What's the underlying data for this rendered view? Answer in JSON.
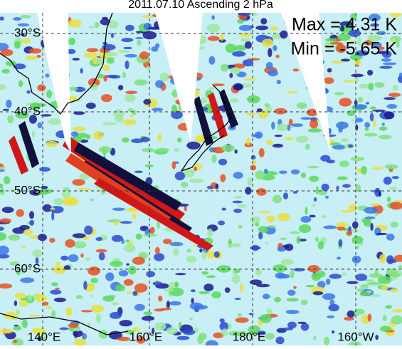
{
  "header": {
    "title": "2011.07.10 Ascending 2 hPa"
  },
  "stats": {
    "max": "Max = 4.31 K",
    "min": "Min = -5.65 K"
  },
  "latitude_labels": [
    "30°S",
    "40°S",
    "50°S",
    "60°S"
  ],
  "longitude_labels": [
    "140°E",
    "160°E",
    "180°E",
    "160°W"
  ]
}
